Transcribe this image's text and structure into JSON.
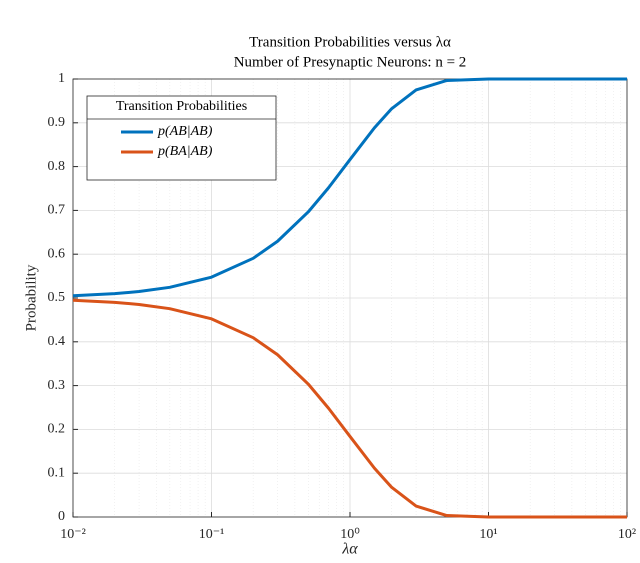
{
  "chart_data": {
    "type": "line",
    "title": "Transition Probabilities versus λα",
    "subtitle": "Number of Presynaptic Neurons: n = 2",
    "x_label": "λα",
    "y_label": "Probability",
    "legend_title": "Transition Probabilities",
    "legend": "upper left",
    "grid": true,
    "x_scale": "log",
    "x": [
      0.01,
      0.02,
      0.03,
      0.05,
      0.1,
      0.2,
      0.3,
      0.5,
      0.7,
      1,
      1.5,
      2,
      3,
      5,
      10,
      20,
      50,
      100
    ],
    "series": [
      {
        "name": "p(AB|AB)",
        "color": "#0072bd",
        "values": [
          0.505,
          0.5099,
          0.5148,
          0.5244,
          0.5476,
          0.5906,
          0.6296,
          0.6967,
          0.7517,
          0.8161,
          0.8884,
          0.9323,
          0.9751,
          0.9966,
          1.0,
          1.0,
          1.0,
          1.0
        ]
      },
      {
        "name": "p(BA|AB)",
        "color": "#d95319",
        "values": [
          0.495,
          0.4901,
          0.4852,
          0.4756,
          0.4524,
          0.4094,
          0.3704,
          0.3033,
          0.2483,
          0.1839,
          0.1116,
          0.0677,
          0.0249,
          0.0034,
          0.0,
          0.0,
          0.0,
          0.0
        ]
      }
    ],
    "xlim": [
      0.01,
      100
    ],
    "xticks": [
      {
        "value": 0.01,
        "label": "10⁻²"
      },
      {
        "value": 0.1,
        "label": "10⁻¹"
      },
      {
        "value": 1,
        "label": "10⁰"
      },
      {
        "value": 10,
        "label": "10¹"
      },
      {
        "value": 100,
        "label": "10²"
      }
    ],
    "ylim": [
      0,
      1
    ],
    "yticks": [
      0,
      0.1,
      0.2,
      0.3,
      0.4,
      0.5,
      0.6,
      0.7,
      0.8,
      0.9,
      1
    ]
  }
}
